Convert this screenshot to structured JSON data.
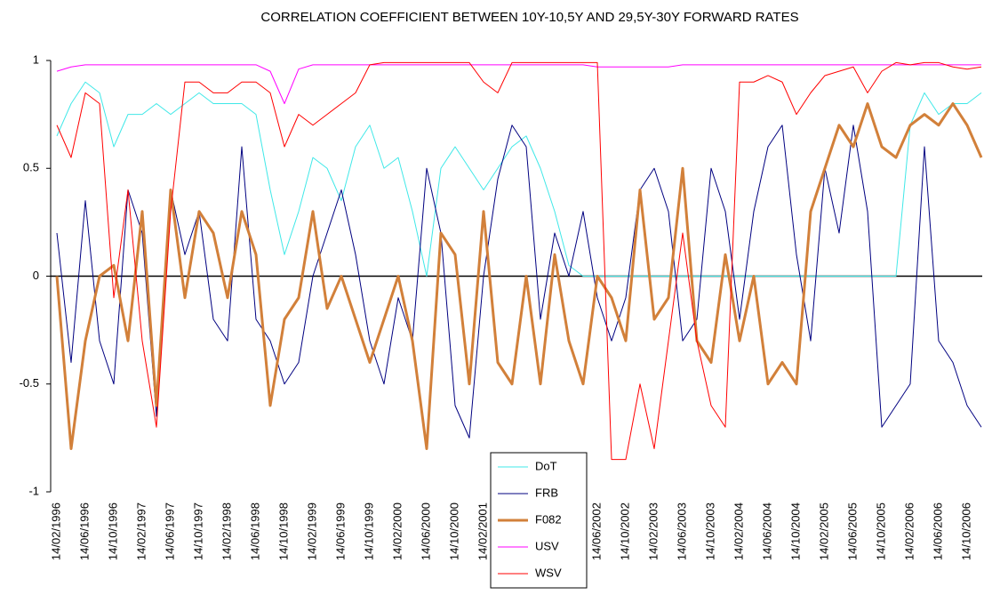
{
  "chart_data": {
    "type": "line",
    "title": "CORRELATION COEFFICIENT BETWEEN 10Y-10,5Y AND 29,5Y-30Y FORWARD RATES",
    "categories": [
      "14/02/1996",
      null,
      "14/06/1996",
      null,
      "14/10/1996",
      null,
      "14/02/1997",
      null,
      "14/06/1997",
      null,
      "14/10/1997",
      null,
      "14/02/1998",
      null,
      "14/06/1998",
      null,
      "14/10/1998",
      null,
      "14/02/1999",
      null,
      "14/06/1999",
      null,
      "14/10/1999",
      null,
      "14/02/2000",
      null,
      "14/06/2000",
      null,
      "14/10/2000",
      null,
      "14/02/2001",
      null,
      "14/06/2001",
      null,
      "14/10/2001",
      null,
      "14/02/2002",
      null,
      "14/06/2002",
      null,
      "14/10/2002",
      null,
      "14/02/2003",
      null,
      "14/06/2003",
      null,
      "14/10/2003",
      null,
      "14/02/2004",
      null,
      "14/06/2004",
      null,
      "14/10/2004",
      null,
      "14/02/2005",
      null,
      "14/06/2005",
      null,
      "14/10/2005",
      null,
      "14/02/2006",
      null,
      "14/06/2006",
      null,
      "14/10/2006",
      null
    ],
    "series": [
      {
        "name": "DoT",
        "color": "#40e8e8",
        "width": 1,
        "values": [
          0.65,
          0.8,
          0.9,
          0.85,
          0.6,
          0.75,
          0.75,
          0.8,
          0.75,
          0.8,
          0.85,
          0.8,
          0.8,
          0.8,
          0.75,
          0.4,
          0.1,
          0.3,
          0.55,
          0.5,
          0.35,
          0.6,
          0.7,
          0.5,
          0.55,
          0.3,
          0.0,
          0.5,
          0.6,
          0.5,
          0.4,
          0.5,
          0.6,
          0.65,
          0.5,
          0.3,
          0.05,
          0,
          0,
          0,
          0,
          0,
          0,
          0,
          0,
          0,
          0,
          0,
          0,
          0,
          0,
          0,
          0,
          0,
          0,
          0,
          0,
          0,
          0,
          0,
          0.7,
          0.85,
          0.75,
          0.8,
          0.8,
          0.85
        ]
      },
      {
        "name": "FRB",
        "color": "#000080",
        "width": 1,
        "values": [
          0.2,
          -0.4,
          0.35,
          -0.3,
          -0.5,
          0.4,
          0.2,
          -0.65,
          0.4,
          0.1,
          0.3,
          -0.2,
          -0.3,
          0.6,
          -0.2,
          -0.3,
          -0.5,
          -0.4,
          0.0,
          0.2,
          0.4,
          0.1,
          -0.3,
          -0.5,
          -0.1,
          -0.3,
          0.5,
          0.2,
          -0.6,
          -0.75,
          0.0,
          0.45,
          0.7,
          0.6,
          -0.2,
          0.2,
          0.0,
          0.3,
          -0.1,
          -0.3,
          -0.1,
          0.4,
          0.5,
          0.3,
          -0.3,
          -0.2,
          0.5,
          0.3,
          -0.2,
          0.3,
          0.6,
          0.7,
          0.1,
          -0.3,
          0.5,
          0.2,
          0.7,
          0.3,
          -0.7,
          -0.6,
          -0.5,
          0.6,
          -0.3,
          -0.4,
          -0.6,
          -0.7
        ]
      },
      {
        "name": "F082",
        "color": "#d2803a",
        "width": 3,
        "values": [
          0,
          -0.8,
          -0.3,
          0,
          0.05,
          -0.3,
          0.3,
          -0.6,
          0.4,
          -0.1,
          0.3,
          0.2,
          -0.1,
          0.3,
          0.1,
          -0.6,
          -0.2,
          -0.1,
          0.3,
          -0.15,
          0,
          -0.2,
          -0.4,
          -0.2,
          0.0,
          -0.3,
          -0.8,
          0.2,
          0.1,
          -0.5,
          0.3,
          -0.4,
          -0.5,
          0.0,
          -0.5,
          0.1,
          -0.3,
          -0.5,
          0.0,
          -0.1,
          -0.3,
          0.4,
          -0.2,
          -0.1,
          0.5,
          -0.3,
          -0.4,
          0.1,
          -0.3,
          0,
          -0.5,
          -0.4,
          -0.5,
          0.3,
          0.5,
          0.7,
          0.6,
          0.8,
          0.6,
          0.55,
          0.7,
          0.75,
          0.7,
          0.8,
          0.7,
          0.55
        ]
      },
      {
        "name": "USV",
        "color": "#ff00ff",
        "width": 1,
        "values": [
          0.95,
          0.97,
          0.98,
          0.98,
          0.98,
          0.98,
          0.98,
          0.98,
          0.98,
          0.98,
          0.98,
          0.98,
          0.98,
          0.98,
          0.98,
          0.95,
          0.8,
          0.96,
          0.98,
          0.98,
          0.98,
          0.98,
          0.98,
          0.98,
          0.98,
          0.98,
          0.98,
          0.98,
          0.98,
          0.98,
          0.98,
          0.98,
          0.98,
          0.98,
          0.98,
          0.98,
          0.98,
          0.98,
          0.97,
          0.97,
          0.97,
          0.97,
          0.97,
          0.97,
          0.98,
          0.98,
          0.98,
          0.98,
          0.98,
          0.98,
          0.98,
          0.98,
          0.98,
          0.98,
          0.98,
          0.98,
          0.98,
          0.98,
          0.98,
          0.98,
          0.98,
          0.98,
          0.98,
          0.98,
          0.98,
          0.98
        ]
      },
      {
        "name": "WSV",
        "color": "#ff0000",
        "width": 1,
        "values": [
          0.7,
          0.55,
          0.85,
          0.8,
          -0.1,
          0.4,
          -0.3,
          -0.7,
          0.3,
          0.9,
          0.9,
          0.85,
          0.85,
          0.9,
          0.9,
          0.85,
          0.6,
          0.75,
          0.7,
          0.75,
          0.8,
          0.85,
          0.98,
          0.99,
          0.99,
          0.99,
          0.99,
          0.99,
          0.99,
          0.99,
          0.9,
          0.85,
          0.99,
          0.99,
          0.99,
          0.99,
          0.99,
          0.99,
          0.99,
          -0.85,
          -0.85,
          -0.5,
          -0.8,
          -0.3,
          0.2,
          -0.3,
          -0.6,
          -0.7,
          0.9,
          0.9,
          0.93,
          0.9,
          0.75,
          0.85,
          0.93,
          0.95,
          0.97,
          0.85,
          0.95,
          0.99,
          0.98,
          0.99,
          0.99,
          0.97,
          0.96,
          0.97
        ]
      }
    ],
    "ylim": [
      -1,
      1
    ],
    "yticks": [
      -1,
      -0.5,
      0,
      0.5,
      1
    ]
  }
}
